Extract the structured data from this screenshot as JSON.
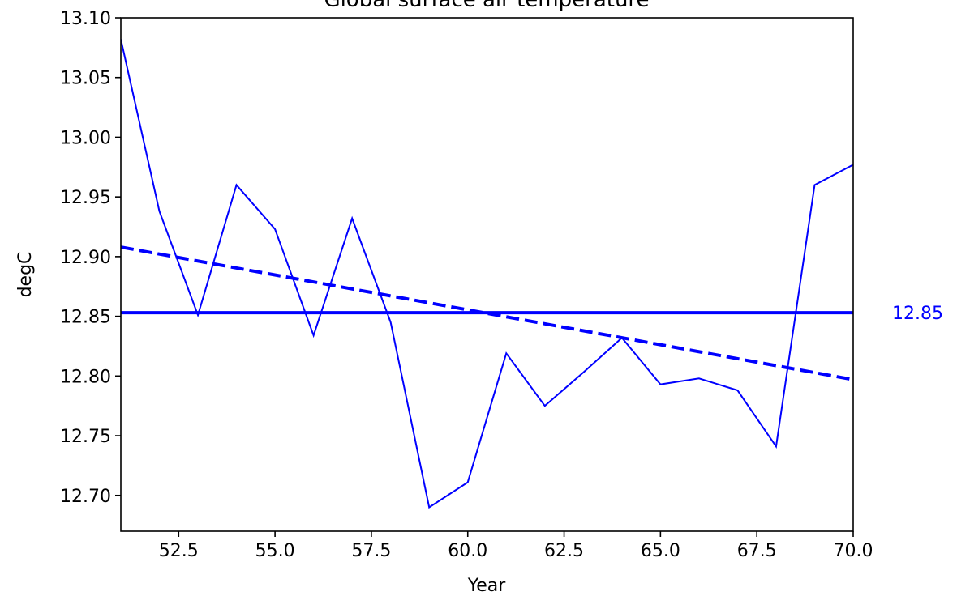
{
  "chart_data": {
    "type": "line",
    "title": "Global surface air temperature",
    "xlabel": "Year",
    "ylabel": "degC",
    "xlim": [
      51,
      70
    ],
    "ylim": [
      12.67,
      13.1
    ],
    "xticks": [
      "52.5",
      "55.0",
      "57.5",
      "60.0",
      "62.5",
      "65.0",
      "67.5",
      "70.0"
    ],
    "yticks": [
      "12.70",
      "12.75",
      "12.80",
      "12.85",
      "12.90",
      "12.95",
      "13.00",
      "13.05",
      "13.10"
    ],
    "grid": false,
    "color": "#0000ff",
    "series": [
      {
        "style": "solid-thin",
        "x": [
          51,
          52,
          53,
          54,
          55,
          56,
          57,
          58,
          59,
          60,
          61,
          62,
          63,
          64,
          65,
          66,
          67,
          68,
          69,
          70
        ],
        "values": [
          13.082,
          12.938,
          12.851,
          12.96,
          12.923,
          12.834,
          12.932,
          12.845,
          12.69,
          12.711,
          12.819,
          12.775,
          12.803,
          12.832,
          12.793,
          12.798,
          12.788,
          12.741,
          12.96,
          12.977
        ]
      },
      {
        "style": "dashed-thick",
        "x": [
          51,
          70
        ],
        "values": [
          12.908,
          12.797
        ]
      },
      {
        "style": "solid-thick",
        "x": [
          51,
          70
        ],
        "values": [
          12.853,
          12.853
        ]
      }
    ],
    "annotations": [
      {
        "text": "12.85",
        "y": 12.853
      }
    ]
  }
}
